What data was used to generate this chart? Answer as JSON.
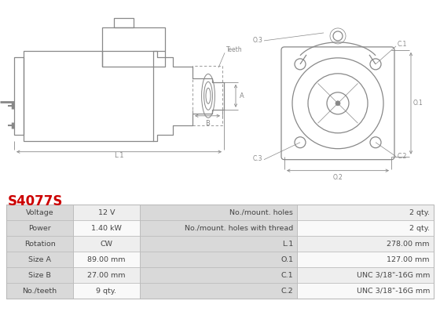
{
  "title": "S4077S",
  "title_color": "#cc0000",
  "bg_color": "#ffffff",
  "table_rows": [
    [
      "Voltage",
      "12 V",
      "No./mount. holes",
      "2 qty."
    ],
    [
      "Power",
      "1.40 kW",
      "No./mount. holes with thread",
      "2 qty."
    ],
    [
      "Rotation",
      "CW",
      "L.1",
      "278.00 mm"
    ],
    [
      "Size A",
      "89.00 mm",
      "O.1",
      "127.00 mm"
    ],
    [
      "Size B",
      "27.00 mm",
      "C.1",
      "UNC 3/18\"-16G mm"
    ],
    [
      "No./teeth",
      "9 qty.",
      "C.2",
      "UNC 3/18\"-16G mm"
    ]
  ],
  "header_bg": "#d9d9d9",
  "row_bg_even": "#eeeeee",
  "row_bg_odd": "#f9f9f9",
  "border_color": "#bbbbbb",
  "text_color": "#444444",
  "diagram_color": "#888888",
  "dim_color": "#888888"
}
